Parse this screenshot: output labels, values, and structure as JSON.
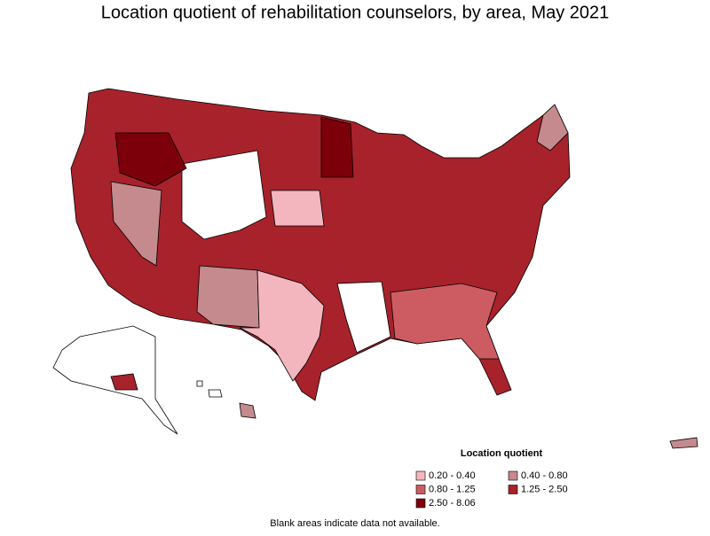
{
  "title": "Location quotient of rehabilitation counselors, by area, May 2021",
  "legend": {
    "title": "Location quotient",
    "items": [
      {
        "label": "0.20 - 0.40",
        "color": "#f4b6be"
      },
      {
        "label": "0.40 - 0.80",
        "color": "#c48a8e"
      },
      {
        "label": "0.80 - 1.25",
        "color": "#cd5c62"
      },
      {
        "label": "1.25 - 2.50",
        "color": "#a7222b"
      },
      {
        "label": "2.50 - 8.06",
        "color": "#7b000a"
      }
    ]
  },
  "note": "Blank areas indicate data not available."
}
